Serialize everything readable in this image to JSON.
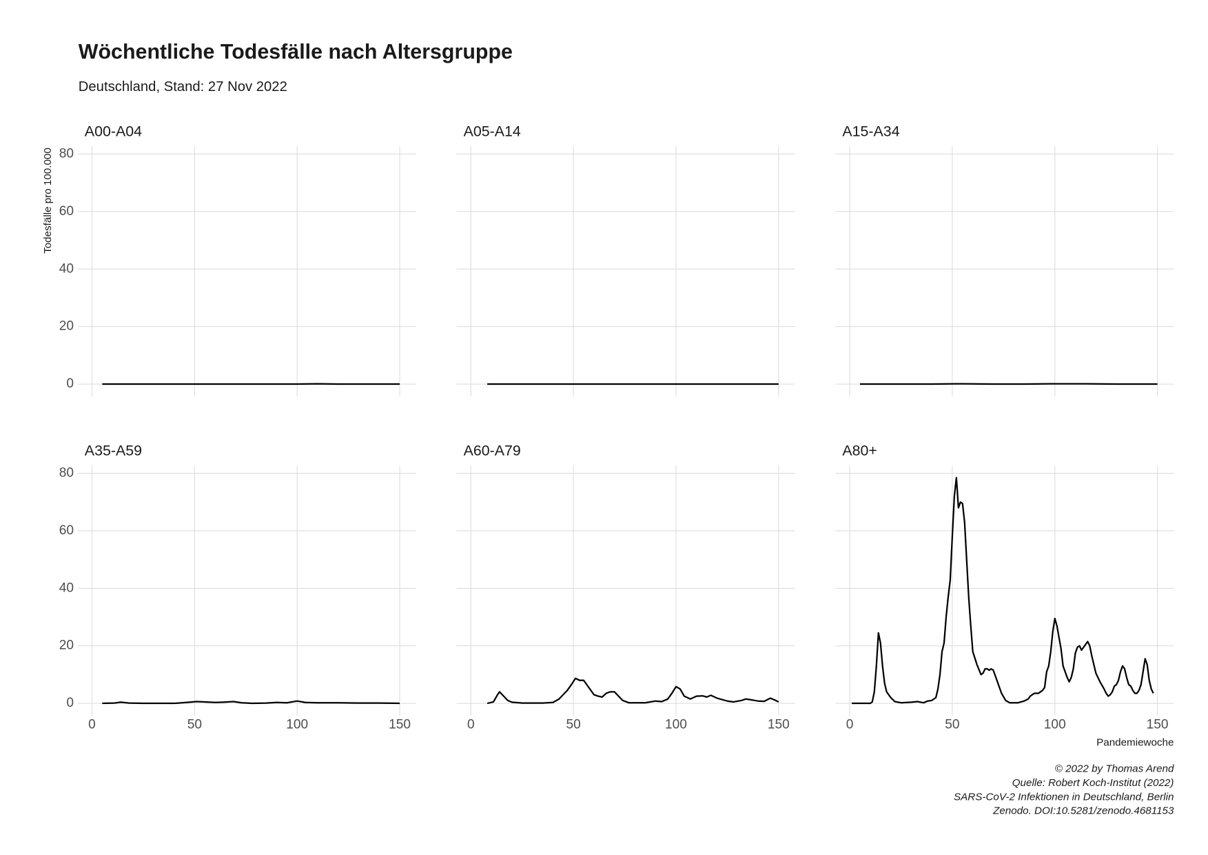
{
  "title": "Wöchentliche Todesfälle nach Altersgruppe",
  "subtitle": "Deutschland, Stand: 27 Nov 2022",
  "y_label": "Todesfälle pro 100.000",
  "x_label": "Pandemiewoche",
  "caption": [
    "© 2022 by Thomas Arend",
    "Quelle: Robert Koch-Institut (2022)",
    "SARS-CoV-2 Infektionen in Deutschland, Berlin",
    "Zenodo. DOI:10.5281/zenodo.4681153"
  ],
  "chart_data": [
    {
      "type": "line",
      "title": "A00-A04",
      "color": "#000000",
      "grid": true,
      "x": [
        5,
        20,
        40,
        60,
        80,
        100,
        110,
        120,
        135,
        150
      ],
      "values": [
        0,
        0,
        0,
        0,
        0,
        0,
        0.1,
        0,
        0,
        0
      ],
      "xlim": [
        -7,
        158
      ],
      "ylim": [
        -4.3,
        82.7
      ],
      "xticks": [
        0,
        50,
        100,
        150
      ],
      "yticks": [
        0,
        20,
        40,
        60,
        80
      ]
    },
    {
      "type": "line",
      "title": "A05-A14",
      "color": "#000000",
      "grid": true,
      "x": [
        8,
        20,
        40,
        60,
        80,
        100,
        120,
        135,
        150
      ],
      "values": [
        0,
        0,
        0,
        0,
        0,
        0,
        0,
        0,
        0
      ],
      "xlim": [
        -7,
        158
      ],
      "ylim": [
        -4.3,
        82.7
      ],
      "xticks": [
        0,
        50,
        100,
        150
      ],
      "yticks": [
        0,
        20,
        40,
        60,
        80
      ]
    },
    {
      "type": "line",
      "title": "A15-A34",
      "color": "#000000",
      "grid": true,
      "x": [
        5,
        20,
        40,
        52,
        70,
        85,
        100,
        115,
        130,
        150
      ],
      "values": [
        0,
        0,
        0,
        0.1,
        0,
        0,
        0.1,
        0.1,
        0,
        0
      ],
      "xlim": [
        -7,
        158
      ],
      "ylim": [
        -4.3,
        82.7
      ],
      "xticks": [
        0,
        50,
        100,
        150
      ],
      "yticks": [
        0,
        20,
        40,
        60,
        80
      ]
    },
    {
      "type": "line",
      "title": "A35-A59",
      "color": "#000000",
      "grid": true,
      "x": [
        5,
        11,
        14,
        18,
        25,
        40,
        46,
        51,
        55,
        60,
        64,
        69,
        73,
        78,
        85,
        90,
        95,
        100,
        104,
        110,
        120,
        130,
        140,
        150
      ],
      "values": [
        0,
        0.1,
        0.4,
        0.1,
        0,
        0,
        0.3,
        0.6,
        0.5,
        0.3,
        0.4,
        0.6,
        0.2,
        0,
        0.1,
        0.3,
        0.2,
        0.8,
        0.3,
        0.2,
        0.2,
        0.1,
        0.1,
        0
      ],
      "xlim": [
        -7,
        158
      ],
      "ylim": [
        -4.3,
        82.7
      ],
      "xticks": [
        0,
        50,
        100,
        150
      ],
      "yticks": [
        0,
        20,
        40,
        60,
        80
      ]
    },
    {
      "type": "line",
      "title": "A60-A79",
      "color": "#000000",
      "grid": true,
      "x": [
        8,
        11,
        13,
        14,
        16,
        18,
        20,
        25,
        35,
        40,
        43,
        45,
        47,
        49,
        51,
        53,
        55,
        57,
        60,
        62,
        64,
        66,
        68,
        70,
        72,
        74,
        77,
        85,
        90,
        93,
        96,
        98,
        100,
        102,
        104,
        107,
        110,
        113,
        115,
        117,
        120,
        125,
        128,
        132,
        134,
        136,
        140,
        143,
        146,
        148,
        150
      ],
      "values": [
        0,
        0.5,
        3,
        4,
        2.5,
        1,
        0.4,
        0.1,
        0.1,
        0.3,
        1.5,
        3,
        4.5,
        6.5,
        8.7,
        8,
        8,
        6,
        3,
        2.5,
        2.2,
        3.5,
        4,
        4,
        2.5,
        1,
        0.2,
        0.2,
        0.8,
        0.6,
        1.5,
        3.5,
        5.8,
        5,
        2.5,
        1.5,
        2.5,
        2.6,
        2.2,
        2.8,
        1.8,
        0.8,
        0.5,
        1,
        1.5,
        1.3,
        0.8,
        0.7,
        1.8,
        1.2,
        0.5
      ],
      "xlim": [
        -7,
        158
      ],
      "ylim": [
        -4.3,
        82.7
      ],
      "xticks": [
        0,
        50,
        100,
        150
      ],
      "yticks": [
        0,
        20,
        40,
        60,
        80
      ]
    },
    {
      "type": "line",
      "title": "A80+",
      "color": "#000000",
      "grid": true,
      "x": [
        1,
        10,
        11,
        12,
        13,
        14,
        15,
        16,
        17,
        18,
        20,
        22,
        25,
        30,
        33,
        36,
        38,
        40,
        42,
        43,
        44,
        45,
        46,
        47,
        48,
        49,
        50,
        51,
        52,
        53,
        54,
        55,
        56,
        57,
        58,
        59,
        60,
        62,
        64,
        65,
        66,
        67,
        68,
        69,
        70,
        72,
        74,
        76,
        78,
        82,
        85,
        87,
        88,
        90,
        92,
        94,
        95,
        96,
        97,
        98,
        99,
        100,
        101,
        102,
        103,
        104,
        106,
        107,
        108,
        109,
        110,
        111,
        112,
        113,
        114,
        115,
        116,
        117,
        118,
        120,
        122,
        124,
        125,
        126,
        127,
        128,
        129,
        130,
        131,
        132,
        133,
        134,
        135,
        136,
        137,
        138,
        139,
        140,
        141,
        142,
        143,
        144,
        145,
        146,
        147,
        148
      ],
      "values": [
        0,
        0,
        0.5,
        4,
        13,
        24.5,
        21,
        13,
        7,
        4,
        2,
        0.6,
        0.2,
        0.4,
        0.6,
        0.2,
        0.8,
        1,
        2,
        5,
        10,
        18,
        21,
        30,
        37,
        43,
        58,
        72,
        78.5,
        68,
        70,
        69.5,
        63,
        50,
        37,
        27,
        18,
        13.5,
        10,
        10.5,
        12,
        12,
        11.5,
        12,
        11.5,
        7.5,
        3.5,
        1,
        0.2,
        0.2,
        0.8,
        1.5,
        2.5,
        3.5,
        3.5,
        4.5,
        5.5,
        11,
        13,
        18,
        25,
        29.5,
        27,
        23,
        19,
        13,
        9,
        7.5,
        9,
        12,
        17.5,
        19.5,
        20,
        18.5,
        19.5,
        20.5,
        21.5,
        20,
        16.5,
        10.5,
        7.5,
        5,
        3.5,
        2.5,
        3,
        4,
        6,
        6.5,
        8,
        11,
        13,
        12,
        9,
        6.5,
        6,
        4.5,
        3.5,
        3.5,
        4.5,
        6.5,
        11,
        15.5,
        13.5,
        8,
        5,
        3.5
      ],
      "xlim": [
        -7,
        158
      ],
      "ylim": [
        -4.3,
        82.7
      ],
      "xticks": [
        0,
        50,
        100,
        150
      ],
      "yticks": [
        0,
        20,
        40,
        60,
        80
      ]
    }
  ]
}
